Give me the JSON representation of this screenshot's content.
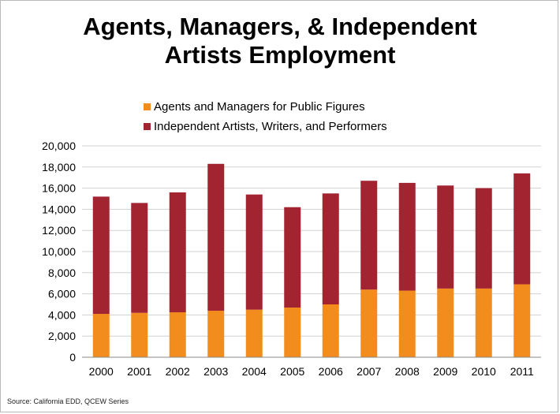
{
  "chart_data": {
    "type": "bar",
    "stacked": true,
    "title": [
      "Agents, Managers, & Independent",
      "Artists Employment"
    ],
    "categories": [
      "2000",
      "2001",
      "2002",
      "2003",
      "2004",
      "2005",
      "2006",
      "2007",
      "2008",
      "2009",
      "2010",
      "2011"
    ],
    "series": [
      {
        "name": "Agents and Managers for Public Figures",
        "color": "#f28c1c",
        "values": [
          4100,
          4200,
          4250,
          4400,
          4500,
          4700,
          5000,
          6400,
          6300,
          6500,
          6500,
          6900
        ]
      },
      {
        "name": "Independent Artists, Writers, and Performers",
        "color": "#a32431",
        "values": [
          11100,
          10400,
          11350,
          13900,
          10900,
          9500,
          10500,
          10300,
          10200,
          9750,
          9500,
          10500
        ]
      }
    ],
    "ylim": [
      0,
      20000
    ],
    "yticks": [
      "0",
      "2,000",
      "4,000",
      "6,000",
      "8,000",
      "10,000",
      "12,000",
      "14,000",
      "16,000",
      "18,000",
      "20,000"
    ],
    "legend_position": "top",
    "grid": true
  },
  "source_text": "Source: California EDD, QCEW Series"
}
